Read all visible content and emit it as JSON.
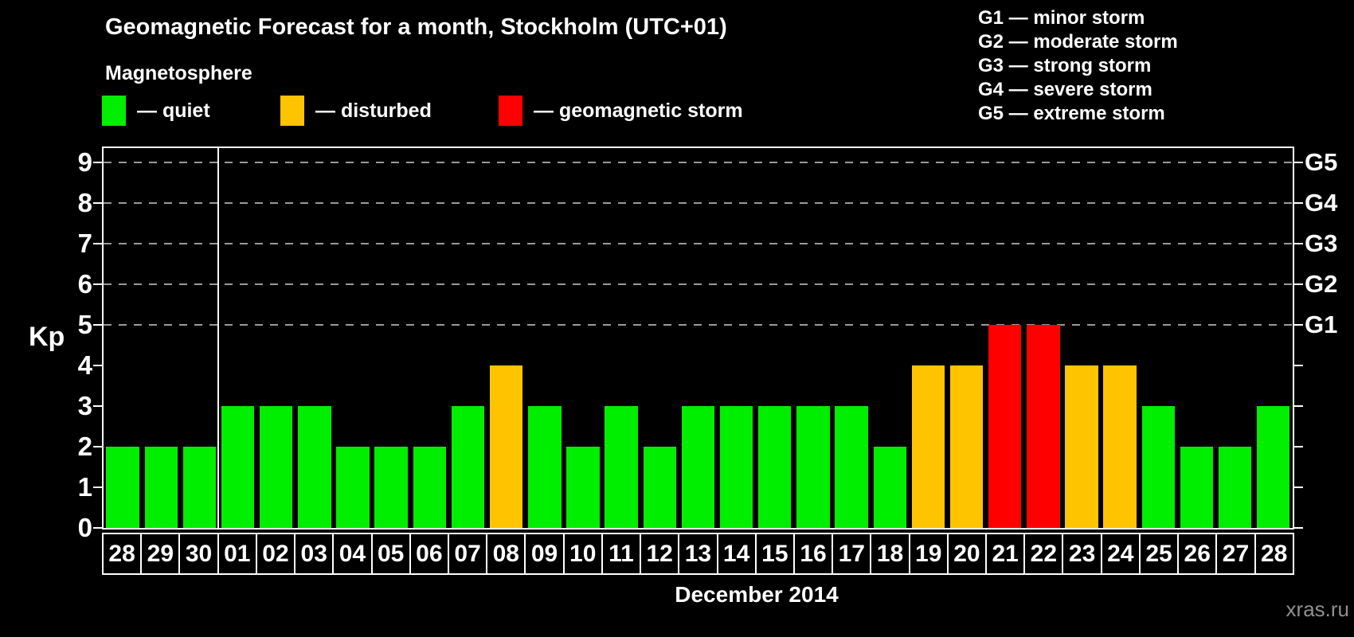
{
  "title": "Geomagnetic Forecast for a month, Stockholm (UTC+01)",
  "subtitle": "Magnetosphere",
  "status_legend": [
    {
      "label": "— quiet",
      "status": "quiet",
      "color": "#00ee00"
    },
    {
      "label": "— disturbed",
      "status": "disturbed",
      "color": "#ffc400"
    },
    {
      "label": "— geomagnetic storm",
      "status": "storm",
      "color": "#ff0000"
    }
  ],
  "storm_scale_legend": [
    "G1 — minor storm",
    "G2 — moderate storm",
    "G3 — strong storm",
    "G4 — severe storm",
    "G5 — extreme storm"
  ],
  "watermark": "xras.ru",
  "chart_data": {
    "type": "bar",
    "title": "Geomagnetic Forecast for a month, Stockholm (UTC+01)",
    "ylabel": "Kp",
    "xlabel": "December 2014",
    "ylim": [
      0,
      9.4
    ],
    "yticks": [
      0,
      1,
      2,
      3,
      4,
      5,
      6,
      7,
      8,
      9
    ],
    "gridlines_at_kp": [
      5,
      6,
      7,
      8,
      9
    ],
    "grid": "horizontal dashed lines at Kp 5-9 only",
    "legend_position": "top-left",
    "right_axis": [
      {
        "kp": 5,
        "label": "G1"
      },
      {
        "kp": 6,
        "label": "G2"
      },
      {
        "kp": 7,
        "label": "G3"
      },
      {
        "kp": 8,
        "label": "G4"
      },
      {
        "kp": 9,
        "label": "G5"
      }
    ],
    "month_divider_after_index": 2,
    "categories": [
      "28",
      "29",
      "30",
      "01",
      "02",
      "03",
      "04",
      "05",
      "06",
      "07",
      "08",
      "09",
      "10",
      "11",
      "12",
      "13",
      "14",
      "15",
      "16",
      "17",
      "18",
      "19",
      "20",
      "21",
      "22",
      "23",
      "24",
      "25",
      "26",
      "27",
      "28"
    ],
    "values": [
      2,
      2,
      2,
      3,
      3,
      3,
      2,
      2,
      2,
      3,
      4,
      3,
      2,
      3,
      2,
      3,
      3,
      3,
      3,
      3,
      2,
      4,
      4,
      5,
      5,
      4,
      4,
      3,
      2,
      2,
      3
    ],
    "statuses": [
      "quiet",
      "quiet",
      "quiet",
      "quiet",
      "quiet",
      "quiet",
      "quiet",
      "quiet",
      "quiet",
      "quiet",
      "disturbed",
      "quiet",
      "quiet",
      "quiet",
      "quiet",
      "quiet",
      "quiet",
      "quiet",
      "quiet",
      "quiet",
      "quiet",
      "disturbed",
      "disturbed",
      "storm",
      "storm",
      "disturbed",
      "disturbed",
      "quiet",
      "quiet",
      "quiet",
      "quiet"
    ],
    "status_colors": {
      "quiet": "#00ee00",
      "disturbed": "#ffc400",
      "storm": "#ff0000"
    }
  }
}
